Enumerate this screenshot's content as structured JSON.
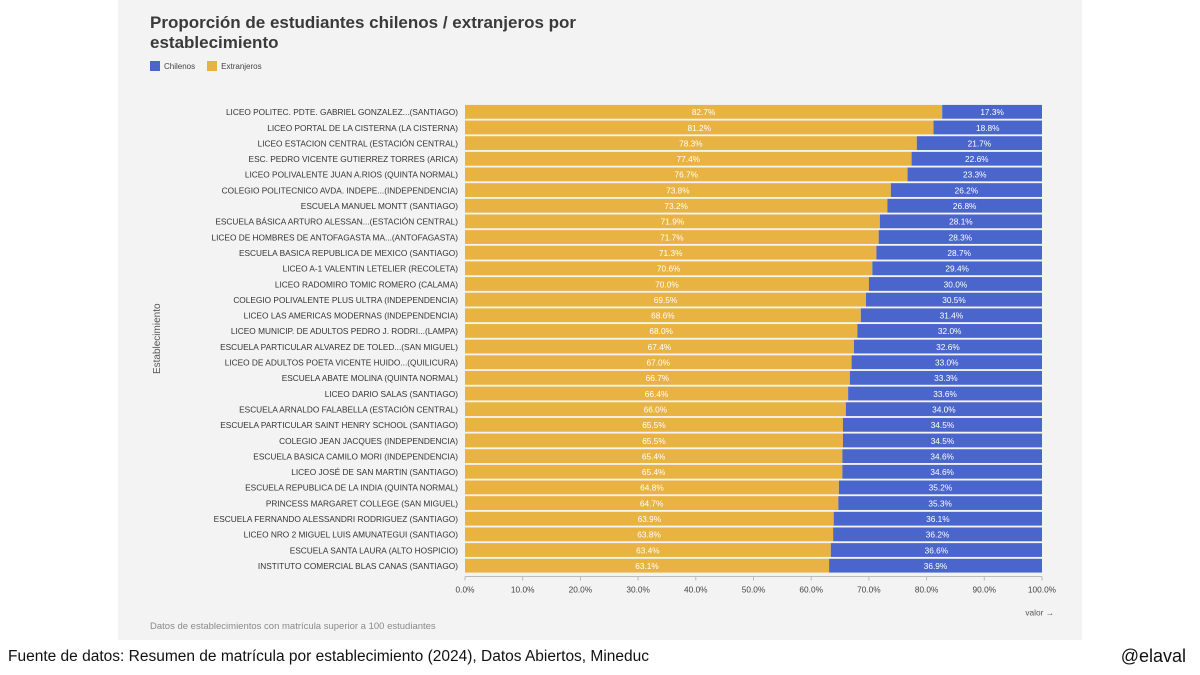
{
  "chart_data": {
    "type": "bar",
    "orientation": "horizontal",
    "stacked": true,
    "title": "Proporción de estudiantes chilenos / extranjeros por establecimiento",
    "xlabel": "valor →",
    "ylabel": "Establecimiento",
    "xlim": [
      0,
      100
    ],
    "x_ticks": [
      "0.0%",
      "10.0%",
      "20.0%",
      "30.0%",
      "40.0%",
      "50.0%",
      "60.0%",
      "70.0%",
      "80.0%",
      "90.0%",
      "100.0%"
    ],
    "legend_position": "top-left",
    "categories": [
      "LICEO POLITEC. PDTE. GABRIEL GONZALEZ...(SANTIAGO)",
      "LICEO PORTAL DE LA CISTERNA (LA CISTERNA)",
      "LICEO ESTACION CENTRAL (ESTACIÓN CENTRAL)",
      "ESC. PEDRO VICENTE GUTIERREZ TORRES (ARICA)",
      "LICEO POLIVALENTE JUAN A.RIOS (QUINTA NORMAL)",
      "COLEGIO POLITECNICO AVDA. INDEPE...(INDEPENDENCIA)",
      "ESCUELA MANUEL MONTT (SANTIAGO)",
      "ESCUELA BÁSICA ARTURO ALESSAN...(ESTACIÓN CENTRAL)",
      "LICEO DE HOMBRES DE ANTOFAGASTA MA...(ANTOFAGASTA)",
      "ESCUELA BASICA REPUBLICA DE MEXICO (SANTIAGO)",
      "LICEO A-1 VALENTIN LETELIER (RECOLETA)",
      "LICEO RADOMIRO TOMIC ROMERO (CALAMA)",
      "COLEGIO POLIVALENTE PLUS ULTRA (INDEPENDENCIA)",
      "LICEO LAS AMERICAS MODERNAS (INDEPENDENCIA)",
      "LICEO MUNICIP. DE ADULTOS PEDRO J. RODRI...(LAMPA)",
      "ESCUELA PARTICULAR ALVAREZ DE TOLED...(SAN MIGUEL)",
      "LICEO DE ADULTOS POETA VICENTE HUIDO...(QUILICURA)",
      "ESCUELA ABATE MOLINA (QUINTA NORMAL)",
      "LICEO DARIO SALAS (SANTIAGO)",
      "ESCUELA ARNALDO FALABELLA (ESTACIÓN CENTRAL)",
      "ESCUELA PARTICULAR SAINT HENRY SCHOOL (SANTIAGO)",
      "COLEGIO JEAN JACQUES (INDEPENDENCIA)",
      "ESCUELA BASICA CAMILO MORI (INDEPENDENCIA)",
      "LICEO JOSÉ DE SAN MARTIN (SANTIAGO)",
      "ESCUELA REPUBLICA DE LA INDIA (QUINTA NORMAL)",
      "PRINCESS MARGARET COLLEGE (SAN MIGUEL)",
      "ESCUELA FERNANDO ALESSANDRI RODRIGUEZ (SANTIAGO)",
      "LICEO NRO 2 MIGUEL LUIS AMUNATEGUI (SANTIAGO)",
      "ESCUELA SANTA LAURA (ALTO HOSPICIO)",
      "INSTITUTO COMERCIAL BLAS CANAS (SANTIAGO)"
    ],
    "series": [
      {
        "name": "Extranjeros",
        "color": "#e8b343",
        "values": [
          82.7,
          81.2,
          78.3,
          77.4,
          76.7,
          73.8,
          73.2,
          71.9,
          71.7,
          71.3,
          70.6,
          70.0,
          69.5,
          68.6,
          68.0,
          67.4,
          67.0,
          66.7,
          66.4,
          66.0,
          65.5,
          65.5,
          65.4,
          65.4,
          64.8,
          64.7,
          63.9,
          63.8,
          63.4,
          63.1
        ]
      },
      {
        "name": "Chilenos",
        "color": "#4a66cc",
        "values": [
          17.3,
          18.8,
          21.7,
          22.6,
          23.3,
          26.2,
          26.8,
          28.1,
          28.3,
          28.7,
          29.4,
          30.0,
          30.5,
          31.4,
          32.0,
          32.6,
          33.0,
          33.3,
          33.6,
          34.0,
          34.5,
          34.5,
          34.6,
          34.6,
          35.2,
          35.3,
          36.1,
          36.2,
          36.6,
          36.9
        ]
      }
    ]
  },
  "header": {
    "title": "Proporción de estudiantes chilenos / extranjeros por establecimiento"
  },
  "legend": {
    "chilenos": "Chilenos",
    "extranjeros": "Extranjeros"
  },
  "footnote": "Datos de establecimientos con matrícula superior a 100 estudiantes",
  "source": "Fuente de datos: Resumen de matrícula por establecimiento (2024), Datos Abiertos, Mineduc",
  "handle": "@elaval"
}
